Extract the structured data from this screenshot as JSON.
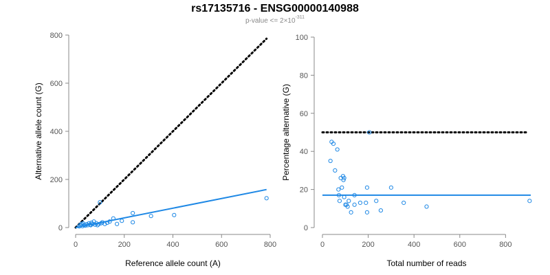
{
  "header": {
    "title": "rs17135716 - ENSG00000140988",
    "subtitle_prefix": "p-value <= 2×10",
    "subtitle_exponent": "-311"
  },
  "colors": {
    "points": "#1E88E5",
    "fit_line": "#1E88E5",
    "reference_line": "#000000",
    "axis": "#888888"
  },
  "chart_data": [
    {
      "type": "scatter",
      "id": "left",
      "title": "",
      "xlabel": "Reference allele count (A)",
      "ylabel": "Alternative allele count (G)",
      "xlim": [
        0,
        800
      ],
      "ylim": [
        0,
        800
      ],
      "xticks": [
        0,
        200,
        400,
        600,
        800
      ],
      "yticks": [
        0,
        200,
        400,
        600,
        800
      ],
      "reference_line": {
        "style": "dotted",
        "x": [
          0,
          785
        ],
        "y": [
          0,
          785
        ]
      },
      "fit_line": {
        "x": [
          0,
          785
        ],
        "y": [
          0,
          158
        ]
      },
      "points": [
        [
          15,
          5
        ],
        [
          20,
          12
        ],
        [
          25,
          15
        ],
        [
          30,
          18
        ],
        [
          35,
          10
        ],
        [
          40,
          8
        ],
        [
          45,
          14
        ],
        [
          50,
          10
        ],
        [
          55,
          18
        ],
        [
          60,
          12
        ],
        [
          65,
          20
        ],
        [
          70,
          15
        ],
        [
          75,
          25
        ],
        [
          80,
          12
        ],
        [
          85,
          18
        ],
        [
          90,
          10
        ],
        [
          100,
          105
        ],
        [
          110,
          22
        ],
        [
          120,
          15
        ],
        [
          130,
          20
        ],
        [
          140,
          25
        ],
        [
          155,
          38
        ],
        [
          170,
          15
        ],
        [
          190,
          28
        ],
        [
          235,
          60
        ],
        [
          235,
          22
        ],
        [
          310,
          48
        ],
        [
          405,
          52
        ],
        [
          785,
          122
        ],
        [
          28,
          6
        ],
        [
          62,
          10
        ],
        [
          95,
          14
        ],
        [
          105,
          18
        ]
      ]
    },
    {
      "type": "scatter",
      "id": "right",
      "title": "",
      "xlabel": "Total number of reads",
      "ylabel": "Percentage alternative (G)",
      "xlim": [
        0,
        910
      ],
      "ylim": [
        0,
        100
      ],
      "xticks": [
        0,
        200,
        400,
        600,
        800
      ],
      "yticks": [
        0,
        20,
        40,
        60,
        80,
        100
      ],
      "reference_line": {
        "style": "dotted",
        "x": [
          0,
          900
        ],
        "y": [
          50,
          50
        ]
      },
      "fit_line": {
        "x": [
          0,
          910
        ],
        "y": [
          17,
          17
        ]
      },
      "points": [
        [
          35,
          35
        ],
        [
          40,
          45
        ],
        [
          48,
          44
        ],
        [
          55,
          30
        ],
        [
          65,
          41
        ],
        [
          70,
          20
        ],
        [
          72,
          17
        ],
        [
          75,
          14
        ],
        [
          80,
          26
        ],
        [
          85,
          21
        ],
        [
          90,
          27
        ],
        [
          92,
          25
        ],
        [
          95,
          26
        ],
        [
          95,
          16
        ],
        [
          100,
          12
        ],
        [
          105,
          12
        ],
        [
          110,
          11
        ],
        [
          115,
          14
        ],
        [
          125,
          8
        ],
        [
          140,
          12
        ],
        [
          140,
          17
        ],
        [
          165,
          13
        ],
        [
          190,
          13
        ],
        [
          195,
          21
        ],
        [
          195,
          8
        ],
        [
          205,
          50
        ],
        [
          235,
          14
        ],
        [
          255,
          9
        ],
        [
          300,
          21
        ],
        [
          355,
          13
        ],
        [
          455,
          11
        ],
        [
          905,
          14
        ]
      ]
    }
  ]
}
